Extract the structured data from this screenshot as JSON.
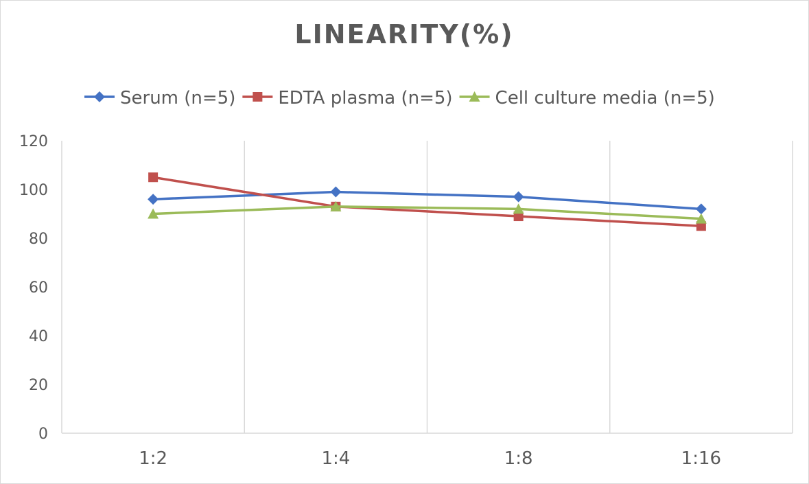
{
  "chart_data": {
    "type": "line",
    "title": "LINEARITY(%)",
    "xlabel": "",
    "ylabel": "",
    "categories": [
      "1:2",
      "1:4",
      "1:8",
      "1:16"
    ],
    "ylim": [
      0,
      120
    ],
    "yticks": [
      0,
      20,
      40,
      60,
      80,
      100,
      120
    ],
    "grid": "vertical",
    "legend_position": "top",
    "series": [
      {
        "name": "Serum (n=5)",
        "values": [
          96,
          99,
          97,
          92
        ],
        "color": "#4472c4",
        "marker": "diamond"
      },
      {
        "name": "EDTA plasma (n=5)",
        "values": [
          105,
          93,
          89,
          85
        ],
        "color": "#c0504d",
        "marker": "square"
      },
      {
        "name": "Cell culture media (n=5)",
        "values": [
          90,
          93,
          92,
          88
        ],
        "color": "#9bbb59",
        "marker": "triangle"
      }
    ]
  }
}
